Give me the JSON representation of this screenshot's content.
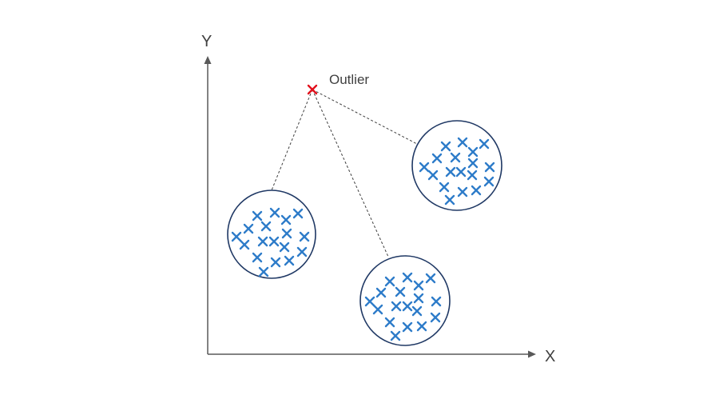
{
  "axes": {
    "x_label": "X",
    "y_label": "Y"
  },
  "outlier": {
    "label": "Outlier",
    "color": "#e2101c"
  },
  "clusters": {
    "point_color": "#2e7cc9",
    "border_color": "#1f3864",
    "count": 3
  }
}
